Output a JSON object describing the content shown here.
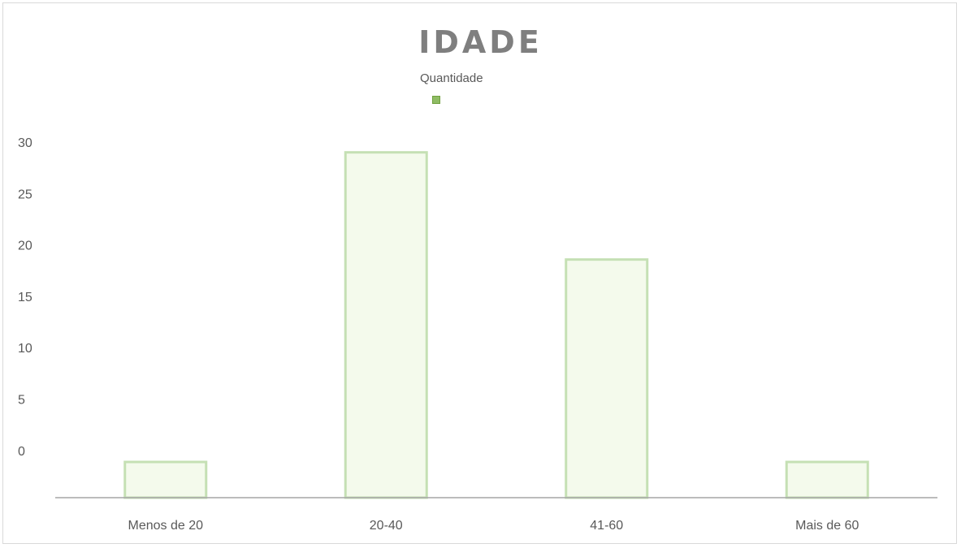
{
  "chart_data": {
    "type": "bar",
    "title": "IDADE",
    "categories": [
      "Menos de 20",
      "20-40",
      "41-60",
      "Mais de 60"
    ],
    "series": [
      {
        "name": "Quantidade",
        "values": [
          3,
          29,
          20,
          3
        ]
      }
    ],
    "y_ticks": [
      "30",
      "25",
      "20",
      "15",
      "10",
      "5",
      "0"
    ],
    "ylim": [
      0,
      30
    ],
    "grid": false,
    "legend_position": "top-center",
    "colors": {
      "bar_fill": "#f4faec",
      "bar_stroke": "#c5e0b4",
      "legend_swatch": "#8fbc64",
      "axis": "#a6a6a6",
      "title": "#7f7f7f",
      "text": "#595959"
    }
  }
}
